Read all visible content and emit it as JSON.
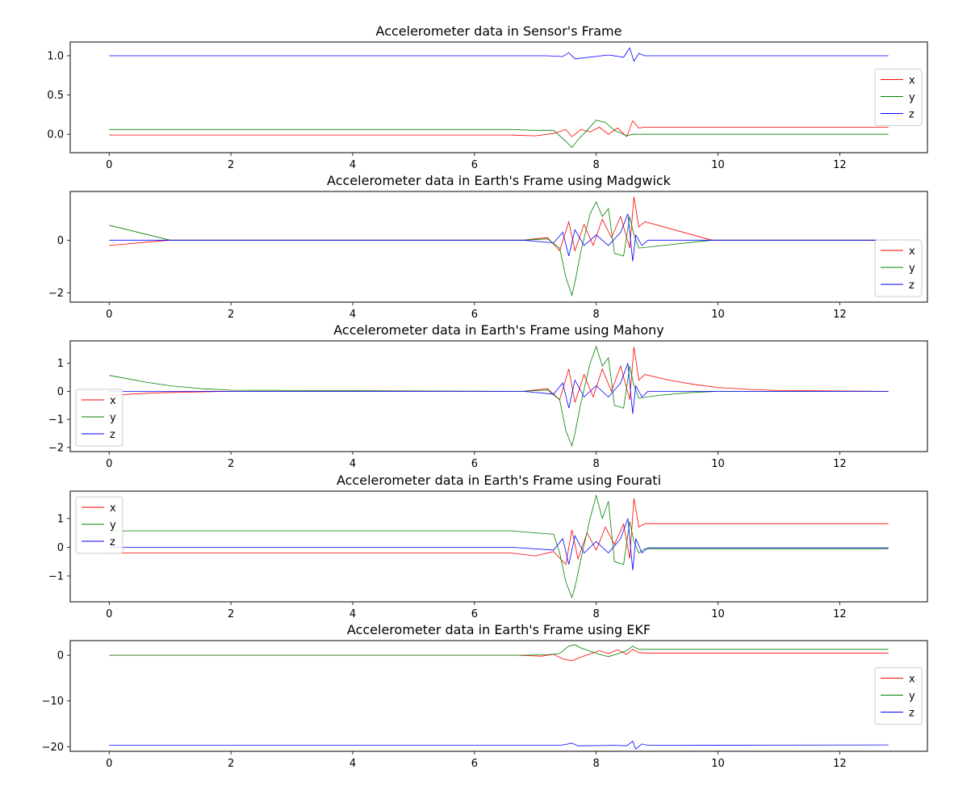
{
  "chart_data": [
    {
      "type": "line",
      "title": "Accelerometer data in Sensor's Frame",
      "xlabel": "",
      "ylabel": "",
      "xlim": [
        -0.64,
        13.44
      ],
      "ylim": [
        -0.235,
        1.175
      ],
      "xticks": [
        "0",
        "2",
        "4",
        "6",
        "8",
        "10",
        "12"
      ],
      "xtick_values": [
        0,
        2,
        4,
        6,
        8,
        10,
        12
      ],
      "yticks": [
        "0.0",
        "0.5",
        "1.0"
      ],
      "ytick_values": [
        0,
        0.5,
        1.0
      ],
      "legend": {
        "entries": [
          "x",
          "y",
          "z"
        ],
        "location": "center right"
      },
      "series": [
        {
          "name": "x",
          "color": "#ff0000",
          "x": [
            0,
            6.6,
            7.0,
            7.3,
            7.5,
            7.6,
            7.75,
            7.9,
            8.05,
            8.2,
            8.35,
            8.5,
            8.6,
            8.7,
            8.8,
            12.8
          ],
          "y": [
            -0.01,
            -0.01,
            -0.02,
            0.01,
            0.06,
            -0.03,
            0.06,
            0.03,
            0.09,
            0.0,
            0.08,
            -0.03,
            0.17,
            0.08,
            0.09,
            0.09
          ]
        },
        {
          "name": "y",
          "color": "#008000",
          "x": [
            0,
            6.6,
            7.0,
            7.3,
            7.5,
            7.6,
            7.7,
            7.85,
            8.0,
            8.15,
            8.3,
            8.5,
            8.6,
            8.8,
            12.8
          ],
          "y": [
            0.06,
            0.06,
            0.05,
            0.05,
            -0.09,
            -0.17,
            -0.07,
            0.05,
            0.18,
            0.15,
            0.05,
            -0.02,
            0.0,
            0.0,
            0.0
          ]
        },
        {
          "name": "z",
          "color": "#0000ff",
          "x": [
            0,
            6.6,
            7.2,
            7.45,
            7.55,
            7.65,
            8.2,
            8.45,
            8.55,
            8.62,
            8.7,
            8.8,
            12.8
          ],
          "y": [
            1.0,
            1.0,
            1.0,
            0.99,
            1.04,
            0.96,
            1.01,
            0.98,
            1.1,
            0.93,
            1.03,
            1.0,
            1.0
          ]
        }
      ]
    },
    {
      "type": "line",
      "title": "Accelerometer data in Earth's Frame using Madgwick",
      "xlabel": "",
      "ylabel": "",
      "xlim": [
        -0.64,
        13.44
      ],
      "ylim": [
        -2.35,
        1.85
      ],
      "xticks": [
        "0",
        "2",
        "4",
        "6",
        "8",
        "10",
        "12"
      ],
      "xtick_values": [
        0,
        2,
        4,
        6,
        8,
        10,
        12
      ],
      "yticks": [
        "−2",
        "0"
      ],
      "ytick_values": [
        -2,
        0
      ],
      "legend": {
        "entries": [
          "x",
          "y",
          "z"
        ],
        "location": "lower right"
      },
      "series": [
        {
          "name": "x",
          "color": "#ff0000",
          "x": [
            0,
            1.0,
            6.8,
            7.2,
            7.4,
            7.55,
            7.65,
            7.8,
            7.95,
            8.1,
            8.25,
            8.4,
            8.55,
            8.62,
            8.7,
            8.8,
            9.9,
            12.8
          ],
          "y": [
            -0.2,
            0.0,
            0.0,
            0.1,
            -0.4,
            0.7,
            -0.4,
            0.6,
            -0.2,
            0.8,
            0.1,
            0.9,
            -0.3,
            1.65,
            0.5,
            0.7,
            0.0,
            0.0
          ]
        },
        {
          "name": "y",
          "color": "#008000",
          "x": [
            0,
            1.0,
            6.8,
            7.2,
            7.4,
            7.5,
            7.6,
            7.65,
            7.75,
            7.9,
            8.0,
            8.1,
            8.2,
            8.3,
            8.45,
            8.55,
            8.62,
            8.7,
            9.9,
            12.8
          ],
          "y": [
            0.57,
            0.0,
            0.0,
            0.05,
            -0.3,
            -1.4,
            -2.1,
            -1.6,
            -0.4,
            1.0,
            1.45,
            0.9,
            1.2,
            -0.5,
            -0.6,
            0.9,
            0.2,
            -0.3,
            0.0,
            0.0
          ]
        },
        {
          "name": "z",
          "color": "#0000ff",
          "x": [
            0,
            6.8,
            7.3,
            7.45,
            7.55,
            7.65,
            7.8,
            8.0,
            8.2,
            8.4,
            8.52,
            8.6,
            8.65,
            8.75,
            8.85,
            12.8
          ],
          "y": [
            0.0,
            0.0,
            -0.1,
            0.3,
            -0.6,
            0.4,
            -0.2,
            0.2,
            -0.2,
            0.3,
            1.0,
            -0.8,
            0.2,
            -0.2,
            0.0,
            0.0
          ]
        }
      ]
    },
    {
      "type": "line",
      "title": "Accelerometer data in Earth's Frame using Mahony",
      "xlabel": "",
      "ylabel": "",
      "xlim": [
        -0.64,
        13.44
      ],
      "ylim": [
        -2.15,
        1.8
      ],
      "xticks": [
        "0",
        "2",
        "4",
        "6",
        "8",
        "10",
        "12"
      ],
      "xtick_values": [
        0,
        2,
        4,
        6,
        8,
        10,
        12
      ],
      "yticks": [
        "−2",
        "−1",
        "0",
        "1"
      ],
      "ytick_values": [
        -2,
        -1,
        0,
        1
      ],
      "legend": {
        "entries": [
          "x",
          "y",
          "z"
        ],
        "location": "lower left"
      },
      "series": [
        {
          "name": "x",
          "color": "#ff0000",
          "x": [
            0,
            0.5,
            1.0,
            1.5,
            2.0,
            6.8,
            7.2,
            7.4,
            7.55,
            7.65,
            7.8,
            7.95,
            8.1,
            8.25,
            8.4,
            8.55,
            8.62,
            8.7,
            8.8,
            9.2,
            9.6,
            10.0,
            10.5,
            11.0,
            12.8
          ],
          "y": [
            -0.15,
            -0.08,
            -0.04,
            -0.02,
            0.0,
            0.0,
            0.1,
            -0.3,
            0.8,
            -0.4,
            0.6,
            -0.2,
            0.8,
            0.0,
            0.9,
            -0.3,
            1.58,
            0.4,
            0.6,
            0.4,
            0.25,
            0.14,
            0.07,
            0.03,
            0.0
          ]
        },
        {
          "name": "y",
          "color": "#008000",
          "x": [
            0,
            0.3,
            0.6,
            1.0,
            1.5,
            2.0,
            6.8,
            7.2,
            7.4,
            7.5,
            7.6,
            7.65,
            7.75,
            7.9,
            8.0,
            8.1,
            8.2,
            8.3,
            8.45,
            8.55,
            8.62,
            8.7,
            9.0,
            9.5,
            10.0,
            12.8
          ],
          "y": [
            0.57,
            0.45,
            0.33,
            0.2,
            0.1,
            0.04,
            0.0,
            0.05,
            -0.3,
            -1.4,
            -1.95,
            -1.5,
            -0.4,
            1.0,
            1.6,
            0.9,
            1.2,
            -0.5,
            -0.6,
            0.9,
            0.2,
            -0.25,
            -0.15,
            -0.05,
            0.0,
            0.0
          ]
        },
        {
          "name": "z",
          "color": "#0000ff",
          "x": [
            0,
            6.8,
            7.3,
            7.45,
            7.55,
            7.65,
            7.8,
            8.0,
            8.2,
            8.4,
            8.52,
            8.6,
            8.65,
            8.75,
            8.85,
            12.8
          ],
          "y": [
            0.0,
            0.0,
            -0.1,
            0.3,
            -0.6,
            0.4,
            -0.2,
            0.2,
            -0.2,
            0.3,
            1.0,
            -0.8,
            0.2,
            -0.2,
            0.0,
            0.0
          ]
        }
      ]
    },
    {
      "type": "line",
      "title": "Accelerometer data in Earth's Frame using Fourati",
      "xlabel": "",
      "ylabel": "",
      "xlim": [
        -0.64,
        13.44
      ],
      "ylim": [
        -1.9,
        1.95
      ],
      "xticks": [
        "0",
        "2",
        "4",
        "6",
        "8",
        "10",
        "12"
      ],
      "xtick_values": [
        0,
        2,
        4,
        6,
        8,
        10,
        12
      ],
      "yticks": [
        "−1",
        "0",
        "1"
      ],
      "ytick_values": [
        -1,
        0,
        1
      ],
      "legend": {
        "entries": [
          "x",
          "y",
          "z"
        ],
        "location": "upper left"
      },
      "series": [
        {
          "name": "x",
          "color": "#ff0000",
          "x": [
            0,
            6.6,
            7.0,
            7.3,
            7.5,
            7.6,
            7.7,
            7.85,
            8.0,
            8.15,
            8.3,
            8.45,
            8.55,
            8.62,
            8.7,
            8.8,
            12.8
          ],
          "y": [
            -0.2,
            -0.2,
            -0.3,
            -0.15,
            -0.6,
            0.6,
            -0.4,
            0.5,
            -0.1,
            0.7,
            0.1,
            0.8,
            -0.4,
            1.7,
            0.7,
            0.82,
            0.82
          ]
        },
        {
          "name": "y",
          "color": "#008000",
          "x": [
            0,
            6.6,
            7.0,
            7.3,
            7.4,
            7.5,
            7.6,
            7.65,
            7.75,
            7.9,
            8.0,
            8.1,
            8.2,
            8.3,
            8.45,
            8.55,
            8.62,
            8.7,
            8.8,
            12.8
          ],
          "y": [
            0.57,
            0.57,
            0.5,
            0.45,
            -0.2,
            -1.2,
            -1.75,
            -1.4,
            -0.4,
            1.0,
            1.8,
            1.0,
            1.6,
            -0.5,
            -0.6,
            0.9,
            0.2,
            -0.2,
            -0.05,
            -0.05
          ]
        },
        {
          "name": "z",
          "color": "#0000ff",
          "x": [
            0,
            6.6,
            7.3,
            7.45,
            7.55,
            7.65,
            7.8,
            8.0,
            8.2,
            8.4,
            8.52,
            8.6,
            8.65,
            8.75,
            8.85,
            12.8
          ],
          "y": [
            0.0,
            0.0,
            -0.1,
            0.3,
            -0.6,
            0.4,
            -0.2,
            0.2,
            -0.2,
            0.3,
            1.0,
            -0.8,
            0.3,
            -0.2,
            -0.02,
            -0.02
          ]
        }
      ]
    },
    {
      "type": "line",
      "title": "Accelerometer data in Earth's Frame using EKF",
      "xlabel": "",
      "ylabel": "",
      "xlim": [
        -0.64,
        13.44
      ],
      "ylim": [
        -21.0,
        3.2
      ],
      "xticks": [
        "0",
        "2",
        "4",
        "6",
        "8",
        "10",
        "12"
      ],
      "xtick_values": [
        0,
        2,
        4,
        6,
        8,
        10,
        12
      ],
      "yticks": [
        "−20",
        "−10",
        "0"
      ],
      "ytick_values": [
        -20,
        -10,
        0
      ],
      "legend": {
        "entries": [
          "x",
          "y",
          "z"
        ],
        "location": "center right"
      },
      "series": [
        {
          "name": "x",
          "color": "#ff0000",
          "x": [
            0,
            6.7,
            7.1,
            7.3,
            7.45,
            7.6,
            7.75,
            7.9,
            8.05,
            8.2,
            8.35,
            8.5,
            8.6,
            8.7,
            8.8,
            12.8
          ],
          "y": [
            0.0,
            0.0,
            -0.2,
            0.2,
            -0.8,
            -1.2,
            -0.4,
            0.3,
            1.0,
            0.4,
            1.2,
            0.2,
            1.3,
            0.6,
            0.5,
            0.5
          ]
        },
        {
          "name": "y",
          "color": "#008000",
          "x": [
            0,
            6.7,
            7.2,
            7.4,
            7.55,
            7.65,
            7.75,
            7.9,
            8.05,
            8.2,
            8.35,
            8.5,
            8.6,
            8.7,
            8.8,
            12.8
          ],
          "y": [
            0.0,
            0.0,
            0.1,
            0.4,
            2.0,
            2.3,
            1.6,
            0.9,
            0.2,
            -0.3,
            0.3,
            1.0,
            2.0,
            1.3,
            1.3,
            1.3
          ]
        },
        {
          "name": "z",
          "color": "#0000ff",
          "x": [
            0,
            6.7,
            7.4,
            7.5,
            7.6,
            7.7,
            8.3,
            8.5,
            8.6,
            8.65,
            8.75,
            8.85,
            12.8
          ],
          "y": [
            -19.7,
            -19.7,
            -19.7,
            -19.5,
            -19.2,
            -19.8,
            -19.7,
            -19.8,
            -18.8,
            -20.5,
            -19.4,
            -19.7,
            -19.6
          ]
        }
      ]
    }
  ]
}
